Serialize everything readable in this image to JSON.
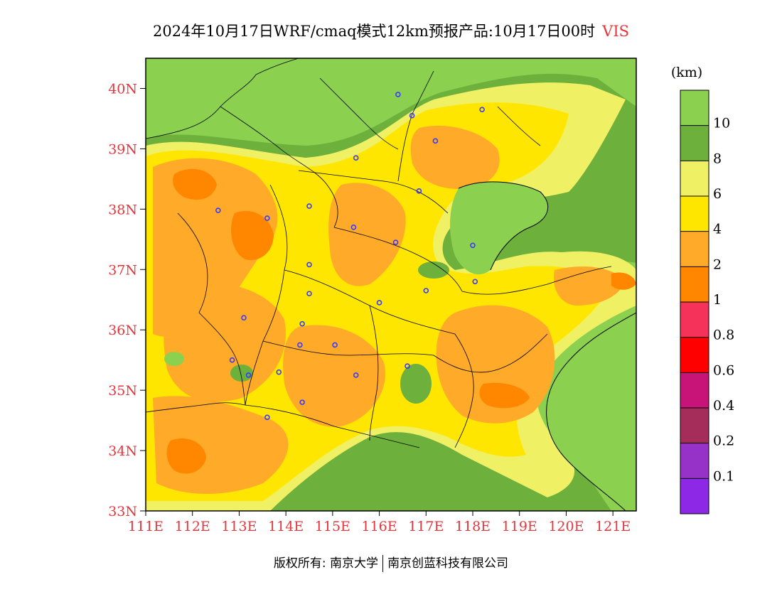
{
  "title": {
    "main": "2024年10月17日WRF/cmaq模式12km预报产品:10月17日00时",
    "variable": "VIS"
  },
  "map": {
    "lon_range": [
      111,
      121.5
    ],
    "lat_range": [
      33,
      40.5
    ],
    "lat_ticks": [
      {
        "value": 40,
        "label": "40N"
      },
      {
        "value": 39,
        "label": "39N"
      },
      {
        "value": 38,
        "label": "38N"
      },
      {
        "value": 37,
        "label": "37N"
      },
      {
        "value": 36,
        "label": "36N"
      },
      {
        "value": 35,
        "label": "35N"
      },
      {
        "value": 34,
        "label": "34N"
      },
      {
        "value": 33,
        "label": "33N"
      }
    ],
    "lon_ticks": [
      {
        "value": 111,
        "label": "111E"
      },
      {
        "value": 112,
        "label": "112E"
      },
      {
        "value": 113,
        "label": "113E"
      },
      {
        "value": 114,
        "label": "114E"
      },
      {
        "value": 115,
        "label": "115E"
      },
      {
        "value": 116,
        "label": "116E"
      },
      {
        "value": 117,
        "label": "117E"
      },
      {
        "value": 118,
        "label": "118E"
      },
      {
        "value": 119,
        "label": "119E"
      },
      {
        "value": 120,
        "label": "120E"
      },
      {
        "value": 121,
        "label": "121E"
      }
    ],
    "stations": [
      [
        116.4,
        39.9
      ],
      [
        116.7,
        39.55
      ],
      [
        118.2,
        39.65
      ],
      [
        117.2,
        39.13
      ],
      [
        115.5,
        38.85
      ],
      [
        116.85,
        38.3
      ],
      [
        112.55,
        37.98
      ],
      [
        113.6,
        37.85
      ],
      [
        114.5,
        38.05
      ],
      [
        115.45,
        37.7
      ],
      [
        116.35,
        37.45
      ],
      [
        118.0,
        37.4
      ],
      [
        114.5,
        37.08
      ],
      [
        114.5,
        36.6
      ],
      [
        116.0,
        36.45
      ],
      [
        117.0,
        36.65
      ],
      [
        118.05,
        36.8
      ],
      [
        113.1,
        36.2
      ],
      [
        114.35,
        36.1
      ],
      [
        114.3,
        35.75
      ],
      [
        115.05,
        35.75
      ],
      [
        112.85,
        35.5
      ],
      [
        113.2,
        35.25
      ],
      [
        113.85,
        35.3
      ],
      [
        115.5,
        35.25
      ],
      [
        116.6,
        35.4
      ],
      [
        114.35,
        34.8
      ],
      [
        113.6,
        34.55
      ]
    ]
  },
  "legend": {
    "unit": "(km)",
    "colors": [
      "#8cd050",
      "#6db03c",
      "#f0f064",
      "#ffe600",
      "#ffaa28",
      "#ff8700",
      "#f5325a",
      "#ff0000",
      "#c81478",
      "#a52d5a",
      "#9632c8",
      "#8c28e6"
    ],
    "labels": [
      "10",
      "8",
      "6",
      "4",
      "2",
      "1",
      "0.8",
      "0.6",
      "0.4",
      "0.2",
      "0.1"
    ]
  },
  "footer": {
    "left": "版权所有: 南京大学",
    "right": "南京创蓝科技有限公司"
  }
}
